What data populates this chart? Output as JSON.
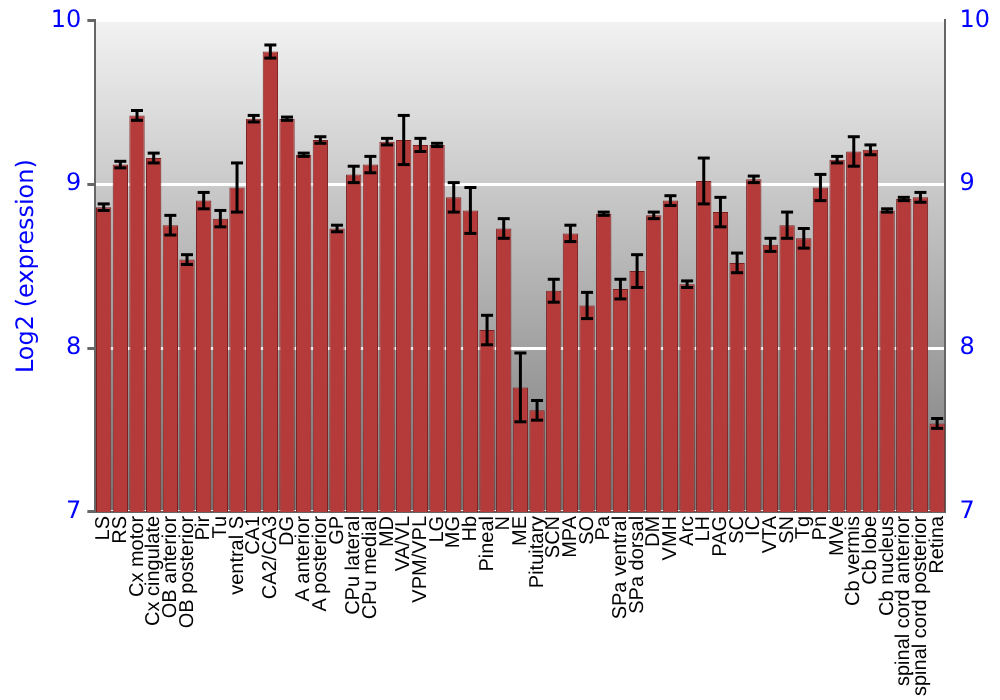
{
  "chart_data": {
    "type": "bar",
    "ylabel": "Log2 (expression)",
    "categories": [
      "LS",
      "RS",
      "Cx motor",
      "Cx cingulate",
      "OB anterior",
      "OB posterior",
      "Pir",
      "Tu",
      "ventral S",
      "CA1",
      "CA2/CA3",
      "DG",
      "A anterior",
      "A posterior",
      "GP",
      "CPu lateral",
      "CPu medial",
      "MD",
      "VA/VL",
      "VPM/VPL",
      "LG",
      "MG",
      "Hb",
      "Pineal",
      "N",
      "ME",
      "Pituitary",
      "SCN",
      "MPA",
      "SO",
      "Pa",
      "SPa ventral",
      "SPa dorsal",
      "DM",
      "VMH",
      "Arc",
      "LH",
      "PAG",
      "SC",
      "IC",
      "VTA",
      "SN",
      "Tg",
      "Pn",
      "MVe",
      "Cb vermis",
      "Cb lobe",
      "Cb nucleus",
      "spinal cord anterior",
      "spinal cord posterior",
      "Retina"
    ],
    "values": [
      8.86,
      9.12,
      9.42,
      9.16,
      8.75,
      8.54,
      8.9,
      8.79,
      8.98,
      9.4,
      9.81,
      9.4,
      9.18,
      9.27,
      8.73,
      9.06,
      9.12,
      9.26,
      9.27,
      9.24,
      9.24,
      8.92,
      8.84,
      8.11,
      8.73,
      7.76,
      7.62,
      8.35,
      8.7,
      8.26,
      8.82,
      8.36,
      8.47,
      8.81,
      8.9,
      8.39,
      9.02,
      8.83,
      8.52,
      9.03,
      8.63,
      8.75,
      8.67,
      8.98,
      9.15,
      9.2,
      9.21,
      8.84,
      8.91,
      8.92,
      7.54
    ],
    "errors": [
      0.02,
      0.02,
      0.03,
      0.03,
      0.06,
      0.03,
      0.05,
      0.05,
      0.15,
      0.02,
      0.04,
      0.01,
      0.01,
      0.02,
      0.02,
      0.05,
      0.05,
      0.02,
      0.15,
      0.04,
      0.01,
      0.09,
      0.14,
      0.09,
      0.06,
      0.21,
      0.06,
      0.07,
      0.05,
      0.08,
      0.01,
      0.06,
      0.1,
      0.02,
      0.03,
      0.02,
      0.14,
      0.09,
      0.06,
      0.02,
      0.04,
      0.08,
      0.06,
      0.08,
      0.02,
      0.09,
      0.03,
      0.01,
      0.01,
      0.03,
      0.03
    ],
    "color": "#b53a3a",
    "ylim": [
      7,
      10
    ],
    "yticks": [
      7,
      8,
      9,
      10
    ],
    "y2lim": [
      7,
      10
    ],
    "y2ticks": [
      7,
      8,
      9,
      10
    ],
    "grid": "y",
    "legend": false
  }
}
